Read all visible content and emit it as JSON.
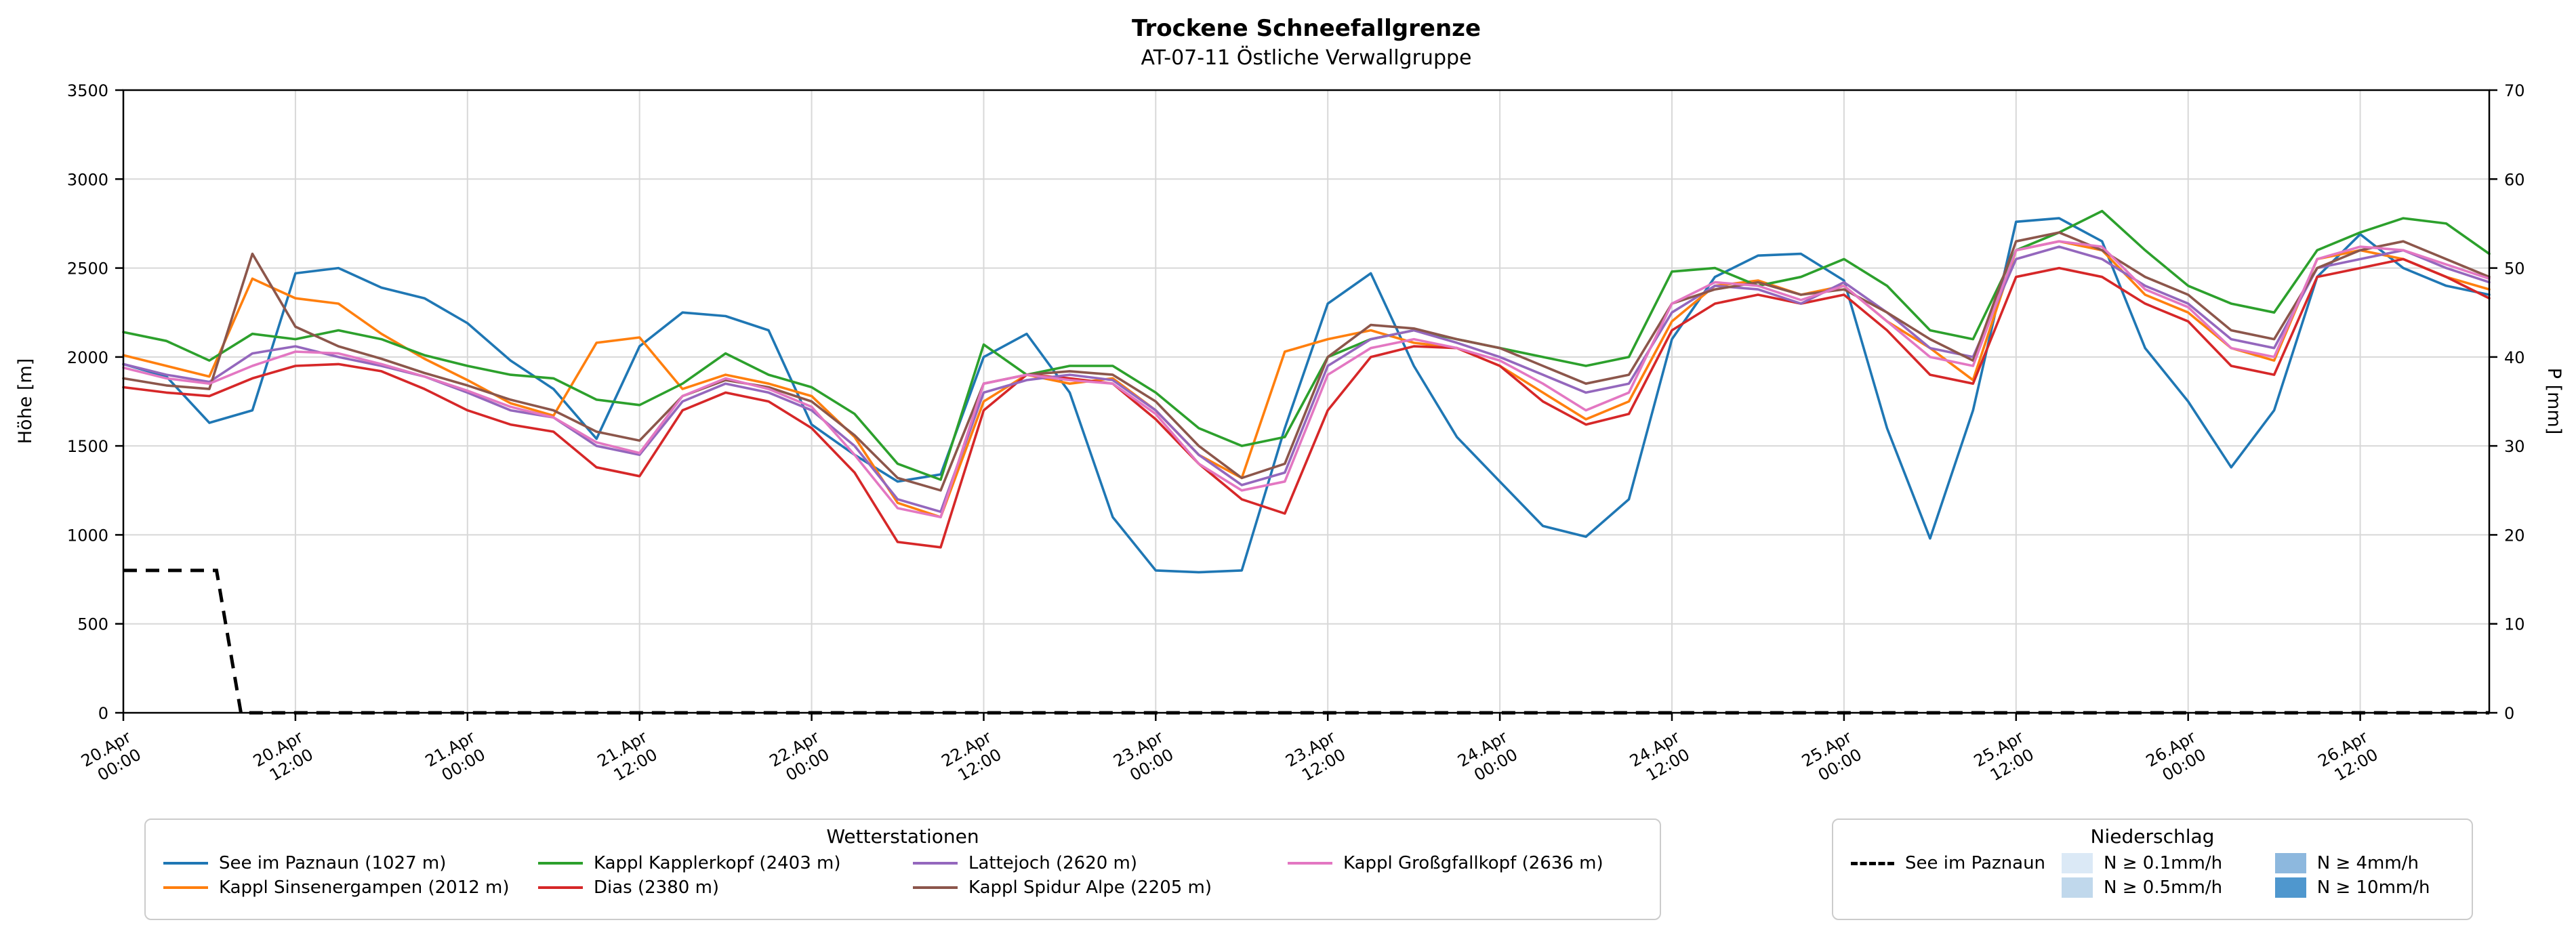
{
  "chart_data": {
    "type": "line",
    "title": "Trockene Schneefallgrenze",
    "subtitle": "AT-07-11 Östliche Verwallgruppe",
    "ylabel_left": "Höhe [m]",
    "ylabel_right": "P [mm]",
    "ylim_left": [
      0,
      3500
    ],
    "ylim_right": [
      0,
      70
    ],
    "xlim_hours": [
      0,
      165
    ],
    "grid": true,
    "left_ticks": [
      0,
      500,
      1000,
      1500,
      2000,
      2500,
      3000,
      3500
    ],
    "right_ticks": [
      0,
      10,
      20,
      30,
      40,
      50,
      60,
      70
    ],
    "x_ticks": [
      {
        "hour": 0,
        "date": "20.Apr",
        "time": "00:00"
      },
      {
        "hour": 12,
        "date": "20.Apr",
        "time": "12:00"
      },
      {
        "hour": 24,
        "date": "21.Apr",
        "time": "00:00"
      },
      {
        "hour": 36,
        "date": "21.Apr",
        "time": "12:00"
      },
      {
        "hour": 48,
        "date": "22.Apr",
        "time": "00:00"
      },
      {
        "hour": 60,
        "date": "22.Apr",
        "time": "12:00"
      },
      {
        "hour": 72,
        "date": "23.Apr",
        "time": "00:00"
      },
      {
        "hour": 84,
        "date": "23.Apr",
        "time": "12:00"
      },
      {
        "hour": 96,
        "date": "24.Apr",
        "time": "00:00"
      },
      {
        "hour": 108,
        "date": "24.Apr",
        "time": "12:00"
      },
      {
        "hour": 120,
        "date": "25.Apr",
        "time": "00:00"
      },
      {
        "hour": 132,
        "date": "25.Apr",
        "time": "12:00"
      },
      {
        "hour": 144,
        "date": "26.Apr",
        "time": "00:00"
      },
      {
        "hour": 156,
        "date": "26.Apr",
        "time": "12:00"
      }
    ],
    "x_hours": [
      0,
      3,
      6,
      9,
      12,
      15,
      18,
      21,
      24,
      27,
      30,
      33,
      36,
      39,
      42,
      45,
      48,
      51,
      54,
      57,
      60,
      63,
      66,
      69,
      72,
      75,
      78,
      81,
      84,
      87,
      90,
      93,
      96,
      99,
      102,
      105,
      108,
      111,
      114,
      117,
      120,
      123,
      126,
      129,
      132,
      135,
      138,
      141,
      144,
      147,
      150,
      153,
      156,
      159,
      162,
      165
    ],
    "series": [
      {
        "name": "See im Paznaun (1027 m)",
        "color": "#1f77b4",
        "values_m": [
          1960,
          1890,
          1630,
          1700,
          2470,
          2500,
          2390,
          2330,
          2190,
          1980,
          1820,
          1540,
          2060,
          2250,
          2230,
          2150,
          1620,
          1450,
          1300,
          1340,
          2000,
          2130,
          1800,
          1100,
          800,
          790,
          800,
          1600,
          2300,
          2470,
          1950,
          1550,
          1300,
          1050,
          990,
          1200,
          2100,
          2450,
          2570,
          2580,
          2430,
          1600,
          980,
          1700,
          2760,
          2780,
          2650,
          2050,
          1750,
          1380,
          1700,
          2450,
          2690,
          2500,
          2400,
          2350
        ]
      },
      {
        "name": "Kappl Sinsenergampen (2012 m)",
        "color": "#ff7f0e",
        "values_m": [
          2010,
          1950,
          1890,
          2440,
          2330,
          2300,
          2130,
          1990,
          1870,
          1740,
          1670,
          2080,
          2110,
          1820,
          1900,
          1850,
          1780,
          1550,
          1180,
          1100,
          1750,
          1900,
          1850,
          1880,
          1700,
          1450,
          1320,
          2030,
          2100,
          2150,
          2080,
          2050,
          1950,
          1800,
          1650,
          1750,
          2200,
          2400,
          2430,
          2350,
          2400,
          2200,
          2050,
          1870,
          2600,
          2650,
          2600,
          2350,
          2250,
          2050,
          1980,
          2550,
          2600,
          2550,
          2450,
          2380
        ]
      },
      {
        "name": "Kappl Kapplerkopf (2403 m)",
        "color": "#2ca02c",
        "values_m": [
          2140,
          2090,
          1980,
          2130,
          2100,
          2150,
          2100,
          2010,
          1950,
          1900,
          1880,
          1760,
          1730,
          1850,
          2020,
          1900,
          1830,
          1680,
          1400,
          1310,
          2070,
          1900,
          1950,
          1950,
          1800,
          1600,
          1500,
          1550,
          2000,
          2100,
          2150,
          2100,
          2050,
          2000,
          1950,
          2000,
          2480,
          2500,
          2400,
          2450,
          2550,
          2400,
          2150,
          2100,
          2600,
          2700,
          2820,
          2600,
          2400,
          2300,
          2250,
          2600,
          2700,
          2780,
          2750,
          2580
        ]
      },
      {
        "name": "Dias (2380 m)",
        "color": "#d62728",
        "values_m": [
          1830,
          1800,
          1780,
          1880,
          1950,
          1960,
          1920,
          1820,
          1700,
          1620,
          1580,
          1380,
          1330,
          1700,
          1800,
          1750,
          1600,
          1350,
          960,
          930,
          1700,
          1900,
          1880,
          1850,
          1650,
          1400,
          1200,
          1120,
          1700,
          2000,
          2060,
          2050,
          1950,
          1750,
          1620,
          1680,
          2150,
          2300,
          2350,
          2300,
          2350,
          2150,
          1900,
          1850,
          2450,
          2500,
          2450,
          2300,
          2200,
          1950,
          1900,
          2450,
          2500,
          2550,
          2450,
          2330
        ]
      },
      {
        "name": "Lattejoch (2620 m)",
        "color": "#9467bd",
        "values_m": [
          1960,
          1900,
          1860,
          2020,
          2060,
          2000,
          1950,
          1890,
          1800,
          1700,
          1660,
          1500,
          1450,
          1750,
          1850,
          1800,
          1700,
          1500,
          1200,
          1130,
          1800,
          1870,
          1900,
          1870,
          1700,
          1450,
          1280,
          1350,
          1950,
          2100,
          2150,
          2080,
          2000,
          1900,
          1800,
          1850,
          2250,
          2400,
          2380,
          2300,
          2420,
          2250,
          2050,
          2000,
          2550,
          2620,
          2550,
          2400,
          2300,
          2100,
          2050,
          2500,
          2550,
          2600,
          2500,
          2420
        ]
      },
      {
        "name": "Kappl Spidur Alpe (2205 m)",
        "color": "#8c564b",
        "values_m": [
          1880,
          1840,
          1820,
          2580,
          2170,
          2060,
          1990,
          1910,
          1840,
          1760,
          1700,
          1580,
          1530,
          1780,
          1870,
          1830,
          1750,
          1560,
          1320,
          1250,
          1850,
          1900,
          1920,
          1900,
          1750,
          1500,
          1320,
          1400,
          2000,
          2180,
          2160,
          2100,
          2050,
          1950,
          1850,
          1900,
          2300,
          2380,
          2420,
          2350,
          2380,
          2250,
          2100,
          1980,
          2650,
          2700,
          2600,
          2450,
          2350,
          2150,
          2100,
          2500,
          2600,
          2650,
          2550,
          2450
        ]
      },
      {
        "name": "Kappl Großgfallkopf (2636 m)",
        "color": "#e377c2",
        "values_m": [
          1940,
          1880,
          1850,
          1950,
          2030,
          2020,
          1960,
          1890,
          1810,
          1720,
          1660,
          1520,
          1460,
          1780,
          1880,
          1820,
          1720,
          1450,
          1150,
          1100,
          1850,
          1900,
          1870,
          1850,
          1680,
          1400,
          1250,
          1300,
          1900,
          2050,
          2100,
          2050,
          1980,
          1850,
          1700,
          1800,
          2300,
          2420,
          2400,
          2320,
          2400,
          2200,
          2000,
          1950,
          2600,
          2650,
          2620,
          2380,
          2280,
          2050,
          2000,
          2550,
          2620,
          2600,
          2520,
          2440
        ]
      }
    ],
    "precip_line": {
      "name": "See im Paznaun",
      "axis": "right",
      "color": "#000000",
      "style": "dashed",
      "x_hours": [
        0,
        6.5,
        8.2,
        165
      ],
      "values_mm": [
        16,
        16,
        0,
        0
      ]
    }
  },
  "legend_stations": {
    "title": "Wetterstationen",
    "items": [
      {
        "label": "See im Paznaun (1027 m)",
        "color": "#1f77b4"
      },
      {
        "label": "Kappl Sinsenergampen (2012 m)",
        "color": "#ff7f0e"
      },
      {
        "label": "Kappl Kapplerkopf (2403 m)",
        "color": "#2ca02c"
      },
      {
        "label": "Dias (2380 m)",
        "color": "#d62728"
      },
      {
        "label": "Lattejoch (2620 m)",
        "color": "#9467bd"
      },
      {
        "label": "Kappl Spidur Alpe (2205 m)",
        "color": "#8c564b"
      },
      {
        "label": "Kappl Großgfallkopf (2636 m)",
        "color": "#e377c2"
      }
    ]
  },
  "legend_precip": {
    "title": "Niederschlag",
    "line_item": {
      "label": "See im Paznaun",
      "color": "#000000"
    },
    "patch_items": [
      {
        "label": "N ≥ 0.1mm/h",
        "color": "#dbe9f6"
      },
      {
        "label": "N ≥ 0.5mm/h",
        "color": "#c0d8ec"
      },
      {
        "label": "N ≥ 4mm/h",
        "color": "#8db8de"
      },
      {
        "label": "N ≥ 10mm/h",
        "color": "#4f97ce"
      }
    ]
  }
}
